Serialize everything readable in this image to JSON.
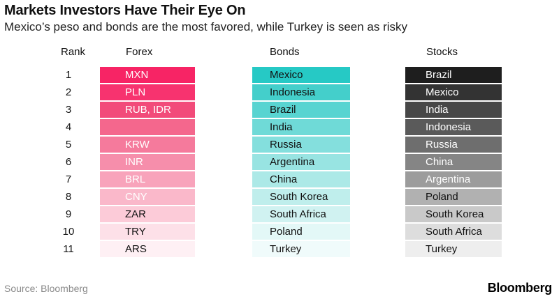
{
  "header": {
    "title": "Markets Investors Have Their Eye On",
    "subtitle": "Mexico’s peso and bonds are the most favored, while Turkey is seen as risky"
  },
  "footer": {
    "source": "Source: Bloomberg",
    "brand": "Bloomberg"
  },
  "chart_data": {
    "type": "table",
    "columns": [
      "Rank",
      "Forex",
      "Bonds",
      "Stocks"
    ],
    "rows": [
      {
        "rank": "1",
        "forex": "MXN",
        "bonds": "Mexico",
        "stocks": "Brazil"
      },
      {
        "rank": "2",
        "forex": "PLN",
        "bonds": "Indonesia",
        "stocks": "Mexico"
      },
      {
        "rank": "3",
        "forex": "RUB, IDR",
        "bonds": "Brazil",
        "stocks": "India"
      },
      {
        "rank": "4",
        "forex": "",
        "bonds": "India",
        "stocks": "Indonesia"
      },
      {
        "rank": "5",
        "forex": "KRW",
        "bonds": "Russia",
        "stocks": "Russia"
      },
      {
        "rank": "6",
        "forex": "INR",
        "bonds": "Argentina",
        "stocks": "China"
      },
      {
        "rank": "7",
        "forex": "BRL",
        "bonds": "China",
        "stocks": "Argentina"
      },
      {
        "rank": "8",
        "forex": "CNY",
        "bonds": "South Korea",
        "stocks": "Poland"
      },
      {
        "rank": "9",
        "forex": "ZAR",
        "bonds": "South Africa",
        "stocks": "South Korea"
      },
      {
        "rank": "10",
        "forex": "TRY",
        "bonds": "Poland",
        "stocks": "South Africa"
      },
      {
        "rank": "11",
        "forex": "ARS",
        "bonds": "Turkey",
        "stocks": "Turkey"
      }
    ],
    "colors": {
      "forex": [
        "#f72465",
        "#f7336f",
        "#f24b7a",
        "#f4678d",
        "#f57a9c",
        "#f68eab",
        "#f8a3bb",
        "#fab8ca",
        "#fccbd8",
        "#fde0e8",
        "#fef0f4"
      ],
      "bonds": [
        "#26c9c5",
        "#44cfcb",
        "#58d4d1",
        "#6fdad7",
        "#84dfdd",
        "#98e4e2",
        "#ace9e7",
        "#bfeeec",
        "#d0f2f1",
        "#e3f8f7",
        "#f0fbfb"
      ],
      "stocks": [
        "#1e1e1e",
        "#333333",
        "#474747",
        "#5a5a5a",
        "#6e6e6e",
        "#858585",
        "#9c9c9c",
        "#b1b1b1",
        "#c9c9c9",
        "#dddddd",
        "#eeeeee"
      ],
      "text_light": "#ffffff",
      "text_dark": "#111111"
    }
  }
}
